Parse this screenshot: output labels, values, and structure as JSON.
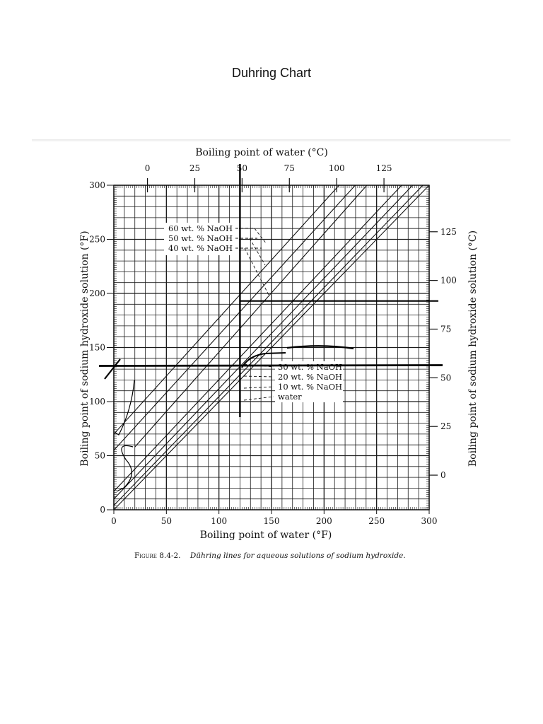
{
  "page": {
    "title": "Duhring Chart"
  },
  "caption": {
    "figure_label": "Figure 8.4-2.",
    "text": "Dühring lines for aqueous solutions of sodium hydroxide."
  },
  "colors": {
    "ink": "#111111",
    "grid": "#1a1a1a",
    "annotation": "#000000"
  },
  "chart_data": {
    "type": "line",
    "title": "",
    "xlabel": "Boiling point of water (°F)",
    "ylabel": "Boiling point of sodium hydroxide solution (°F)",
    "x2label": "Boiling point of water (°C)",
    "y2label": "Boiling point of sodium hydroxide solution (°C)",
    "xlim": [
      0,
      300
    ],
    "ylim": [
      0,
      300
    ],
    "xticks": [
      "0",
      "50",
      "100",
      "150",
      "200",
      "250",
      "300"
    ],
    "yticks": [
      "0",
      "50",
      "100",
      "150",
      "200",
      "250",
      "300"
    ],
    "x2ticks": [
      "0",
      "25",
      "50",
      "75",
      "100",
      "125"
    ],
    "y2ticks": [
      "0",
      "25",
      "50",
      "75",
      "100",
      "125"
    ],
    "grid": true,
    "series": [
      {
        "name": "water",
        "x": [
          0,
          300
        ],
        "y": [
          0,
          300
        ]
      },
      {
        "name": "10 wt. % NaOH",
        "x": [
          0,
          300
        ],
        "y": [
          4,
          306
        ]
      },
      {
        "name": "20 wt. % NaOH",
        "x": [
          0,
          300
        ],
        "y": [
          10,
          316
        ]
      },
      {
        "name": "30 wt. % NaOH",
        "x": [
          0,
          300
        ],
        "y": [
          17,
          327
        ]
      },
      {
        "name": "40 wt. % NaOH",
        "x": [
          20,
          300
        ],
        "y": [
          58,
          365
        ]
      },
      {
        "name": "50 wt. % NaOH",
        "x": [
          0,
          300
        ],
        "y": [
          55,
          375
        ]
      },
      {
        "name": "60 wt. % NaOH",
        "x": [
          0,
          300
        ],
        "y": [
          70,
          392
        ]
      }
    ],
    "legend_upper": [
      "60 wt. % NaOH",
      "50 wt. % NaOH",
      "40 wt. % NaOH"
    ],
    "legend_lower": [
      "30 wt. % NaOH",
      "20 wt. % NaOH",
      "10 wt. % NaOH",
      "water"
    ],
    "hand_annotations": {
      "vertical_line_x": 120,
      "horizontal_line_y": [
        133,
        193
      ]
    }
  }
}
